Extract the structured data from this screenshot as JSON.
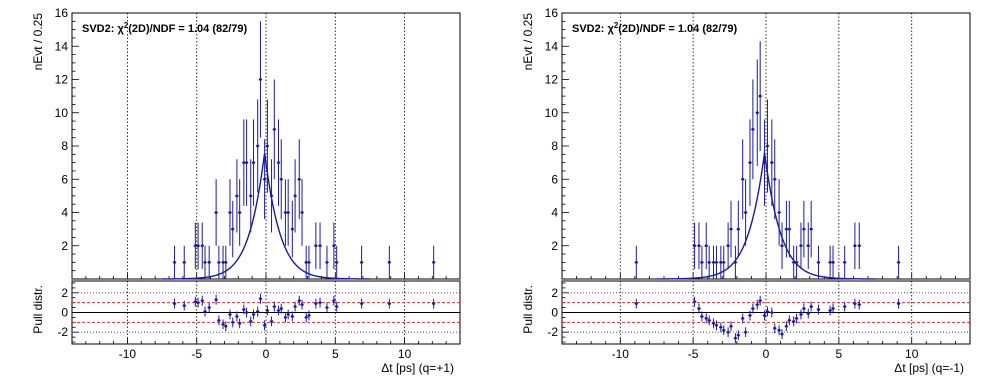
{
  "colors": {
    "data": "#1a1aa0",
    "pull_band_2": "#3333cc",
    "pull_band_1": "#e03030",
    "grid": "#000000"
  },
  "chart_data": [
    {
      "type": "scatter",
      "annotation_prefix": "SVD2: ",
      "annotation_chi": "χ",
      "annotation_sup": "2",
      "annotation_rest": "(2D)/NDF = 1.04 (82/79)",
      "ylabel": "nEvt / 0.25",
      "pull_ylabel": "Pull distr.",
      "xlabel": "Δt [ps] (q=+1)",
      "xlim": [
        -14,
        14
      ],
      "ylim": [
        0,
        16
      ],
      "pull_ylim": [
        -3.2,
        3.2
      ],
      "x_ticks": [
        "-10",
        "-5",
        "0",
        "5",
        "10"
      ],
      "x_tick_values": [
        -10,
        -5,
        0,
        5,
        10
      ],
      "y_ticks": [
        "2",
        "4",
        "6",
        "8",
        "10",
        "12",
        "14",
        "16"
      ],
      "pull_ticks": [
        "-2",
        "0",
        "2"
      ],
      "fit_curve": {
        "peak": 7.6,
        "mean": -0.1
      },
      "points": [
        {
          "x": -6.6,
          "y": 1,
          "e": 1
        },
        {
          "x": -5.9,
          "y": 1,
          "e": 1
        },
        {
          "x": -5.1,
          "y": 2,
          "e": 1.4
        },
        {
          "x": -4.9,
          "y": 2,
          "e": 1.4
        },
        {
          "x": -4.6,
          "y": 2,
          "e": 1.4
        },
        {
          "x": -4.4,
          "y": 1,
          "e": 1
        },
        {
          "x": -4.1,
          "y": 1,
          "e": 1
        },
        {
          "x": -3.6,
          "y": 4,
          "e": 2
        },
        {
          "x": -3.4,
          "y": 1,
          "e": 1
        },
        {
          "x": -3.1,
          "y": 1,
          "e": 1
        },
        {
          "x": -2.9,
          "y": 1,
          "e": 1
        },
        {
          "x": -2.6,
          "y": 4,
          "e": 2
        },
        {
          "x": -2.4,
          "y": 3,
          "e": 1.7
        },
        {
          "x": -2.1,
          "y": 5,
          "e": 2.2
        },
        {
          "x": -1.9,
          "y": 4,
          "e": 2
        },
        {
          "x": -1.6,
          "y": 7,
          "e": 2.6
        },
        {
          "x": -1.4,
          "y": 7,
          "e": 2.6
        },
        {
          "x": -1.1,
          "y": 5,
          "e": 2.2
        },
        {
          "x": -0.9,
          "y": 7,
          "e": 2.6
        },
        {
          "x": -0.6,
          "y": 8,
          "e": 2.8
        },
        {
          "x": -0.4,
          "y": 12,
          "e": 3.5
        },
        {
          "x": -0.1,
          "y": 6,
          "e": 2.4
        },
        {
          "x": 0.1,
          "y": 8,
          "e": 2.8
        },
        {
          "x": 0.4,
          "y": 5,
          "e": 2.2
        },
        {
          "x": 0.6,
          "y": 9,
          "e": 3
        },
        {
          "x": 0.9,
          "y": 7,
          "e": 2.6
        },
        {
          "x": 1.1,
          "y": 6,
          "e": 2.4
        },
        {
          "x": 1.4,
          "y": 4,
          "e": 2
        },
        {
          "x": 1.6,
          "y": 4,
          "e": 2
        },
        {
          "x": 1.9,
          "y": 3,
          "e": 1.7
        },
        {
          "x": 2.1,
          "y": 5,
          "e": 2.2
        },
        {
          "x": 2.4,
          "y": 6,
          "e": 2.4
        },
        {
          "x": 2.6,
          "y": 4,
          "e": 2
        },
        {
          "x": 2.9,
          "y": 1,
          "e": 1
        },
        {
          "x": 3.1,
          "y": 1,
          "e": 1
        },
        {
          "x": 3.6,
          "y": 2,
          "e": 1.4
        },
        {
          "x": 3.9,
          "y": 2,
          "e": 1.4
        },
        {
          "x": 4.4,
          "y": 1,
          "e": 1
        },
        {
          "x": 4.9,
          "y": 2,
          "e": 1.4
        },
        {
          "x": 5.1,
          "y": 1,
          "e": 1
        },
        {
          "x": 6.9,
          "y": 1,
          "e": 1
        },
        {
          "x": 8.9,
          "y": 1,
          "e": 1
        },
        {
          "x": 12.1,
          "y": 1,
          "e": 1
        }
      ],
      "pulls": [
        {
          "x": -6.6,
          "y": 0.9
        },
        {
          "x": -5.9,
          "y": 0.7
        },
        {
          "x": -5.1,
          "y": 1.1
        },
        {
          "x": -4.9,
          "y": 1.0
        },
        {
          "x": -4.6,
          "y": 1.2
        },
        {
          "x": -4.4,
          "y": 0.1
        },
        {
          "x": -4.1,
          "y": 0.5
        },
        {
          "x": -3.6,
          "y": 1.3
        },
        {
          "x": -3.4,
          "y": -0.8
        },
        {
          "x": -3.1,
          "y": -1.2
        },
        {
          "x": -2.9,
          "y": -1.4
        },
        {
          "x": -2.6,
          "y": -0.2
        },
        {
          "x": -2.4,
          "y": -1.0
        },
        {
          "x": -2.1,
          "y": -0.4
        },
        {
          "x": -1.9,
          "y": -1.1
        },
        {
          "x": -1.6,
          "y": 0.3
        },
        {
          "x": -1.4,
          "y": 0.0
        },
        {
          "x": -1.1,
          "y": -0.9
        },
        {
          "x": -0.9,
          "y": -0.2
        },
        {
          "x": -0.6,
          "y": 0.1
        },
        {
          "x": -0.4,
          "y": 1.4
        },
        {
          "x": -0.1,
          "y": -1.3
        },
        {
          "x": 0.1,
          "y": 0.2
        },
        {
          "x": 0.4,
          "y": -0.9
        },
        {
          "x": 0.6,
          "y": 0.6
        },
        {
          "x": 0.9,
          "y": 0.2
        },
        {
          "x": 1.1,
          "y": 0.4
        },
        {
          "x": 1.4,
          "y": -0.5
        },
        {
          "x": 1.6,
          "y": -0.2
        },
        {
          "x": 1.9,
          "y": -0.4
        },
        {
          "x": 2.1,
          "y": 0.6
        },
        {
          "x": 2.4,
          "y": 1.2
        },
        {
          "x": 2.6,
          "y": 0.8
        },
        {
          "x": 2.9,
          "y": -0.5
        },
        {
          "x": 3.1,
          "y": -0.3
        },
        {
          "x": 3.6,
          "y": 0.9
        },
        {
          "x": 3.9,
          "y": 1.0
        },
        {
          "x": 4.4,
          "y": 0.5
        },
        {
          "x": 4.9,
          "y": 1.2
        },
        {
          "x": 5.1,
          "y": 0.6
        },
        {
          "x": 6.9,
          "y": 0.9
        },
        {
          "x": 8.9,
          "y": 0.9
        },
        {
          "x": 12.1,
          "y": 0.9
        }
      ]
    },
    {
      "type": "scatter",
      "annotation_prefix": "SVD2: ",
      "annotation_chi": "χ",
      "annotation_sup": "2",
      "annotation_rest": "(2D)/NDF = 1.04 (82/79)",
      "ylabel": "nEvt / 0.25",
      "pull_ylabel": "Pull distr.",
      "xlabel": "Δt [ps] (q=-1)",
      "xlim": [
        -14,
        14
      ],
      "ylim": [
        0,
        16
      ],
      "pull_ylim": [
        -3.2,
        3.2
      ],
      "x_ticks": [
        "-10",
        "-5",
        "0",
        "5",
        "10"
      ],
      "x_tick_values": [
        -10,
        -5,
        0,
        5,
        10
      ],
      "y_ticks": [
        "2",
        "4",
        "6",
        "8",
        "10",
        "12",
        "14",
        "16"
      ],
      "pull_ticks": [
        "-2",
        "0",
        "2"
      ],
      "fit_curve": {
        "peak": 7.6,
        "mean": -0.1
      },
      "points": [
        {
          "x": -8.9,
          "y": 1,
          "e": 1
        },
        {
          "x": -4.9,
          "y": 2,
          "e": 1.4
        },
        {
          "x": -4.6,
          "y": 2,
          "e": 1.4
        },
        {
          "x": -4.4,
          "y": 1,
          "e": 1
        },
        {
          "x": -4.1,
          "y": 2,
          "e": 1.4
        },
        {
          "x": -3.9,
          "y": 1,
          "e": 1
        },
        {
          "x": -3.6,
          "y": 1,
          "e": 1
        },
        {
          "x": -3.4,
          "y": 1,
          "e": 1
        },
        {
          "x": -3.1,
          "y": 1,
          "e": 1
        },
        {
          "x": -2.9,
          "y": 1,
          "e": 1
        },
        {
          "x": -2.6,
          "y": 2,
          "e": 1.4
        },
        {
          "x": -2.4,
          "y": 3,
          "e": 1.7
        },
        {
          "x": -2.1,
          "y": 1,
          "e": 1
        },
        {
          "x": -1.9,
          "y": 3,
          "e": 1.7
        },
        {
          "x": -1.6,
          "y": 6,
          "e": 2.4
        },
        {
          "x": -1.4,
          "y": 4,
          "e": 2
        },
        {
          "x": -1.1,
          "y": 7,
          "e": 2.6
        },
        {
          "x": -0.9,
          "y": 9,
          "e": 3
        },
        {
          "x": -0.6,
          "y": 10,
          "e": 3.2
        },
        {
          "x": -0.4,
          "y": 11,
          "e": 3.3
        },
        {
          "x": -0.1,
          "y": 7,
          "e": 2.6
        },
        {
          "x": 0.1,
          "y": 8,
          "e": 2.8
        },
        {
          "x": 0.4,
          "y": 7,
          "e": 2.6
        },
        {
          "x": 0.6,
          "y": 6,
          "e": 2.4
        },
        {
          "x": 0.9,
          "y": 4,
          "e": 2
        },
        {
          "x": 1.1,
          "y": 2,
          "e": 1.4
        },
        {
          "x": 1.4,
          "y": 3,
          "e": 1.7
        },
        {
          "x": 1.6,
          "y": 3,
          "e": 1.7
        },
        {
          "x": 1.9,
          "y": 1,
          "e": 1
        },
        {
          "x": 2.1,
          "y": 1,
          "e": 1
        },
        {
          "x": 2.4,
          "y": 2,
          "e": 1.4
        },
        {
          "x": 2.6,
          "y": 3,
          "e": 1.7
        },
        {
          "x": 2.9,
          "y": 2,
          "e": 1.4
        },
        {
          "x": 3.1,
          "y": 3,
          "e": 1.7
        },
        {
          "x": 3.6,
          "y": 1,
          "e": 1
        },
        {
          "x": 4.4,
          "y": 1,
          "e": 1
        },
        {
          "x": 4.6,
          "y": 1,
          "e": 1
        },
        {
          "x": 5.4,
          "y": 1,
          "e": 1
        },
        {
          "x": 6.1,
          "y": 2,
          "e": 1.4
        },
        {
          "x": 6.4,
          "y": 2,
          "e": 1.4
        },
        {
          "x": 9.1,
          "y": 1,
          "e": 1
        }
      ],
      "pulls": [
        {
          "x": -8.9,
          "y": 0.9
        },
        {
          "x": -4.9,
          "y": 1.1
        },
        {
          "x": -4.6,
          "y": 0.4
        },
        {
          "x": -4.4,
          "y": -0.4
        },
        {
          "x": -4.1,
          "y": -0.6
        },
        {
          "x": -3.9,
          "y": -0.8
        },
        {
          "x": -3.6,
          "y": -1.1
        },
        {
          "x": -3.4,
          "y": -1.3
        },
        {
          "x": -3.1,
          "y": -1.5
        },
        {
          "x": -2.9,
          "y": -1.8
        },
        {
          "x": -2.6,
          "y": -2.0
        },
        {
          "x": -2.4,
          "y": -1.4
        },
        {
          "x": -2.1,
          "y": -2.6
        },
        {
          "x": -1.9,
          "y": -2.3
        },
        {
          "x": -1.6,
          "y": -0.6
        },
        {
          "x": -1.4,
          "y": -2.0
        },
        {
          "x": -1.1,
          "y": -0.3
        },
        {
          "x": -0.9,
          "y": 0.4
        },
        {
          "x": -0.6,
          "y": 0.8
        },
        {
          "x": -0.4,
          "y": 1.2
        },
        {
          "x": -0.1,
          "y": -0.3
        },
        {
          "x": 0.1,
          "y": 0.1
        },
        {
          "x": 0.4,
          "y": 0.0
        },
        {
          "x": 0.6,
          "y": -1.6
        },
        {
          "x": 0.9,
          "y": -1.8
        },
        {
          "x": 1.1,
          "y": -2.2
        },
        {
          "x": 1.4,
          "y": -1.4
        },
        {
          "x": 1.6,
          "y": -0.8
        },
        {
          "x": 1.9,
          "y": -0.9
        },
        {
          "x": 2.1,
          "y": -0.6
        },
        {
          "x": 2.4,
          "y": -0.2
        },
        {
          "x": 2.6,
          "y": 0.4
        },
        {
          "x": 2.9,
          "y": -0.1
        },
        {
          "x": 3.1,
          "y": 0.6
        },
        {
          "x": 3.6,
          "y": 0.3
        },
        {
          "x": 4.4,
          "y": 0.2
        },
        {
          "x": 4.6,
          "y": 0.4
        },
        {
          "x": 5.4,
          "y": 0.6
        },
        {
          "x": 6.1,
          "y": 0.9
        },
        {
          "x": 6.4,
          "y": 0.8
        },
        {
          "x": 9.1,
          "y": 0.9
        }
      ]
    }
  ]
}
